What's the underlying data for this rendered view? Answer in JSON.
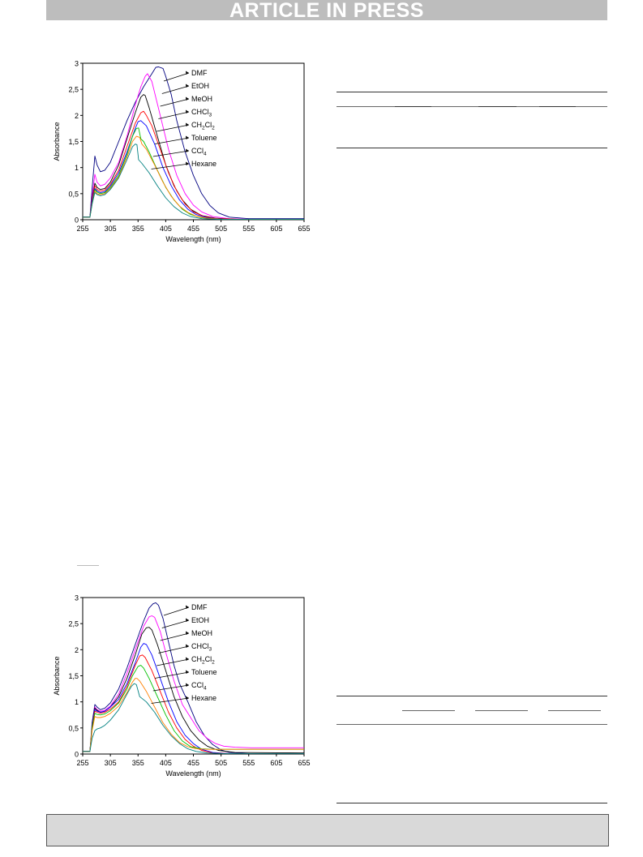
{
  "header": {
    "banner_text": "ARTICLE IN PRESS"
  },
  "chart_data": [
    {
      "type": "line",
      "xlabel": "Wavelength (nm)",
      "ylabel": "Absorbance",
      "xlim": [
        255,
        655
      ],
      "ylim": [
        0,
        3
      ],
      "xticks": [
        255,
        305,
        355,
        405,
        455,
        505,
        555,
        605,
        655
      ],
      "yticks": [
        0,
        0.5,
        1,
        1.5,
        2,
        2.5,
        3
      ],
      "ytick_labels": [
        "0",
        "0,5",
        "1",
        "1,5",
        "2",
        "2,5",
        "3"
      ],
      "grid": false,
      "legend_position": "right (labels with arrows)",
      "series": [
        {
          "name": "DMF",
          "color": "#000080",
          "x": [
            255,
            268,
            272,
            277,
            281,
            287,
            295,
            305,
            320,
            335,
            350,
            365,
            380,
            387,
            392,
            400,
            405,
            415,
            425,
            440,
            455,
            470,
            485,
            500,
            520,
            555,
            655
          ],
          "y": [
            0.05,
            0.05,
            0.6,
            1.22,
            1.05,
            0.92,
            0.95,
            1.1,
            1.5,
            1.9,
            2.25,
            2.55,
            2.8,
            2.92,
            2.93,
            2.9,
            2.75,
            2.4,
            1.9,
            1.3,
            0.85,
            0.5,
            0.27,
            0.13,
            0.05,
            0.02,
            0.02
          ]
        },
        {
          "name": "EtOH",
          "color": "#ff00ff",
          "x": [
            255,
            268,
            272,
            277,
            281,
            287,
            295,
            305,
            320,
            335,
            350,
            360,
            368,
            372,
            380,
            395,
            410,
            425,
            440,
            455,
            470,
            490,
            520,
            555,
            655
          ],
          "y": [
            0.05,
            0.05,
            0.45,
            0.87,
            0.72,
            0.65,
            0.68,
            0.8,
            1.1,
            1.6,
            2.2,
            2.55,
            2.75,
            2.8,
            2.65,
            2.0,
            1.35,
            0.85,
            0.5,
            0.28,
            0.15,
            0.06,
            0.02,
            0.01,
            0.01
          ]
        },
        {
          "name": "MeOH",
          "color": "#000000",
          "x": [
            255,
            268,
            272,
            277,
            281,
            287,
            295,
            305,
            320,
            335,
            350,
            360,
            365,
            368,
            375,
            390,
            405,
            420,
            435,
            450,
            470,
            495,
            530,
            655
          ],
          "y": [
            0.05,
            0.05,
            0.4,
            0.7,
            0.62,
            0.58,
            0.6,
            0.72,
            1.05,
            1.55,
            2.05,
            2.35,
            2.4,
            2.38,
            2.15,
            1.6,
            1.05,
            0.65,
            0.38,
            0.2,
            0.08,
            0.03,
            0.01,
            0.01
          ]
        },
        {
          "name": "CHCl3",
          "color": "#ff0000",
          "x": [
            255,
            268,
            272,
            277,
            281,
            287,
            295,
            305,
            320,
            335,
            350,
            360,
            365,
            370,
            380,
            395,
            410,
            425,
            440,
            455,
            475,
            500,
            540,
            655
          ],
          "y": [
            0.05,
            0.05,
            0.38,
            0.65,
            0.58,
            0.55,
            0.57,
            0.68,
            0.95,
            1.4,
            1.85,
            2.05,
            2.08,
            2.0,
            1.8,
            1.35,
            0.9,
            0.55,
            0.3,
            0.15,
            0.06,
            0.02,
            0.01,
            0.01
          ]
        },
        {
          "name": "CH2Cl2",
          "color": "#0000ff",
          "x": [
            255,
            268,
            272,
            277,
            281,
            287,
            295,
            305,
            320,
            335,
            350,
            355,
            360,
            370,
            385,
            400,
            415,
            430,
            445,
            460,
            480,
            510,
            550,
            655
          ],
          "y": [
            0.05,
            0.05,
            0.35,
            0.6,
            0.55,
            0.52,
            0.54,
            0.65,
            0.9,
            1.3,
            1.75,
            1.88,
            1.9,
            1.8,
            1.45,
            1.0,
            0.65,
            0.38,
            0.2,
            0.1,
            0.04,
            0.01,
            0.01,
            0.01
          ]
        },
        {
          "name": "Toluene",
          "color": "#00c000",
          "x": [
            255,
            268,
            272,
            277,
            281,
            287,
            295,
            305,
            320,
            335,
            345,
            352,
            356,
            360,
            365,
            375,
            390,
            405,
            420,
            435,
            450,
            470,
            500,
            540,
            655
          ],
          "y": [
            0.05,
            0.05,
            0.32,
            0.58,
            0.53,
            0.5,
            0.52,
            0.62,
            0.85,
            1.25,
            1.6,
            1.75,
            1.76,
            1.55,
            1.5,
            1.3,
            0.95,
            0.62,
            0.38,
            0.2,
            0.1,
            0.04,
            0.01,
            0.01,
            0.01
          ]
        },
        {
          "name": "CCl4",
          "color": "#ff8000",
          "x": [
            255,
            268,
            272,
            277,
            281,
            287,
            295,
            305,
            320,
            335,
            345,
            352,
            358,
            362,
            370,
            385,
            400,
            415,
            430,
            445,
            460,
            480,
            510,
            550,
            655
          ],
          "y": [
            0.05,
            0.05,
            0.3,
            0.55,
            0.5,
            0.48,
            0.5,
            0.6,
            0.82,
            1.2,
            1.5,
            1.6,
            1.58,
            1.45,
            1.35,
            1.05,
            0.72,
            0.45,
            0.26,
            0.14,
            0.07,
            0.03,
            0.01,
            0.01,
            0.01
          ]
        },
        {
          "name": "Hexane",
          "color": "#008080",
          "x": [
            255,
            268,
            272,
            277,
            281,
            287,
            295,
            305,
            320,
            335,
            345,
            350,
            353,
            356,
            362,
            375,
            390,
            405,
            420,
            435,
            450,
            470,
            500,
            540,
            655
          ],
          "y": [
            0.05,
            0.05,
            0.3,
            0.52,
            0.48,
            0.46,
            0.48,
            0.58,
            0.8,
            1.15,
            1.4,
            1.45,
            1.44,
            1.15,
            1.08,
            0.9,
            0.65,
            0.42,
            0.25,
            0.13,
            0.06,
            0.02,
            0.01,
            0.01,
            0.01
          ]
        }
      ],
      "labels": [
        {
          "text": "DMF",
          "sub": ""
        },
        {
          "text": "EtOH",
          "sub": ""
        },
        {
          "text": "MeOH",
          "sub": ""
        },
        {
          "text": "CHCl",
          "sub": "3"
        },
        {
          "text": "CH",
          "sub": "2",
          "text2": "Cl",
          "sub2": "2"
        },
        {
          "text": "Toluene",
          "sub": ""
        },
        {
          "text": "CCl",
          "sub": "4"
        },
        {
          "text": "Hexane",
          "sub": ""
        }
      ]
    },
    {
      "type": "line",
      "xlabel": "Wavelength (nm)",
      "ylabel": "Absorbance",
      "xlim": [
        255,
        655
      ],
      "ylim": [
        0,
        3
      ],
      "xticks": [
        255,
        305,
        355,
        405,
        455,
        505,
        555,
        605,
        655
      ],
      "yticks": [
        0,
        0.5,
        1,
        1.5,
        2,
        2.5,
        3
      ],
      "ytick_labels": [
        "0",
        "0,5",
        "1",
        "1,5",
        "2",
        "2,5",
        "3"
      ],
      "grid": false,
      "legend_position": "right (labels with arrows)",
      "series": [
        {
          "name": "DMF",
          "color": "#000080",
          "x": [
            255,
            268,
            272,
            277,
            281,
            287,
            295,
            305,
            320,
            335,
            350,
            365,
            375,
            382,
            387,
            392,
            400,
            410,
            420,
            430,
            445,
            460,
            475,
            490,
            505,
            520,
            555,
            655
          ],
          "y": [
            0.05,
            0.05,
            0.6,
            0.95,
            0.9,
            0.85,
            0.88,
            0.98,
            1.25,
            1.65,
            2.1,
            2.55,
            2.8,
            2.88,
            2.9,
            2.85,
            2.6,
            2.15,
            1.7,
            1.35,
            1.0,
            0.62,
            0.35,
            0.18,
            0.08,
            0.03,
            0.01,
            0.01
          ]
        },
        {
          "name": "EtOH",
          "color": "#ff00ff",
          "x": [
            255,
            268,
            272,
            277,
            281,
            287,
            295,
            305,
            320,
            335,
            350,
            365,
            375,
            380,
            385,
            395,
            405,
            420,
            435,
            450,
            465,
            480,
            495,
            510,
            530,
            560,
            655
          ],
          "y": [
            0.05,
            0.05,
            0.5,
            0.9,
            0.85,
            0.82,
            0.84,
            0.92,
            1.15,
            1.55,
            2.0,
            2.45,
            2.63,
            2.65,
            2.62,
            2.35,
            1.95,
            1.4,
            0.95,
            0.7,
            0.45,
            0.3,
            0.2,
            0.15,
            0.13,
            0.12,
            0.12
          ]
        },
        {
          "name": "MeOH",
          "color": "#000000",
          "x": [
            255,
            268,
            272,
            277,
            281,
            287,
            295,
            305,
            320,
            335,
            350,
            362,
            370,
            375,
            380,
            390,
            405,
            420,
            435,
            450,
            465,
            480,
            500,
            530,
            655
          ],
          "y": [
            0.05,
            0.05,
            0.5,
            0.88,
            0.84,
            0.8,
            0.82,
            0.9,
            1.1,
            1.45,
            1.9,
            2.3,
            2.42,
            2.43,
            2.38,
            2.1,
            1.6,
            1.1,
            0.72,
            0.45,
            0.27,
            0.15,
            0.07,
            0.03,
            0.02
          ]
        },
        {
          "name": "CHCl3",
          "color": "#0000ff",
          "x": [
            255,
            268,
            272,
            277,
            281,
            287,
            295,
            305,
            320,
            335,
            350,
            360,
            365,
            370,
            380,
            395,
            410,
            425,
            440,
            455,
            470,
            490,
            520,
            655
          ],
          "y": [
            0.05,
            0.05,
            0.5,
            0.85,
            0.82,
            0.8,
            0.82,
            0.9,
            1.05,
            1.35,
            1.75,
            2.05,
            2.12,
            2.1,
            1.9,
            1.45,
            1.0,
            0.62,
            0.36,
            0.2,
            0.09,
            0.03,
            0.01,
            0.01
          ]
        },
        {
          "name": "CH2Cl2",
          "color": "#ff0000",
          "x": [
            255,
            268,
            272,
            277,
            281,
            287,
            295,
            305,
            320,
            335,
            350,
            358,
            363,
            368,
            380,
            395,
            410,
            425,
            440,
            455,
            470,
            490,
            520,
            655
          ],
          "y": [
            0.05,
            0.05,
            0.5,
            0.82,
            0.8,
            0.78,
            0.8,
            0.86,
            1.0,
            1.3,
            1.7,
            1.88,
            1.9,
            1.85,
            1.6,
            1.2,
            0.8,
            0.5,
            0.28,
            0.15,
            0.07,
            0.02,
            0.01,
            0.01
          ]
        },
        {
          "name": "Toluene",
          "color": "#00c000",
          "x": [
            255,
            268,
            272,
            277,
            281,
            287,
            295,
            305,
            320,
            335,
            345,
            355,
            360,
            365,
            375,
            390,
            405,
            420,
            435,
            450,
            470,
            490,
            520,
            560,
            655
          ],
          "y": [
            0.05,
            0.05,
            0.5,
            0.78,
            0.76,
            0.75,
            0.77,
            0.83,
            0.98,
            1.25,
            1.5,
            1.68,
            1.7,
            1.65,
            1.45,
            1.1,
            0.75,
            0.45,
            0.25,
            0.14,
            0.1,
            0.09,
            0.09,
            0.09,
            0.09
          ]
        },
        {
          "name": "CCl4",
          "color": "#ff8000",
          "x": [
            255,
            268,
            272,
            277,
            281,
            287,
            295,
            305,
            320,
            335,
            345,
            350,
            353,
            358,
            370,
            385,
            400,
            415,
            430,
            445,
            460,
            480,
            510,
            560,
            655
          ],
          "y": [
            0.05,
            0.05,
            0.45,
            0.72,
            0.7,
            0.7,
            0.72,
            0.78,
            0.92,
            1.18,
            1.38,
            1.45,
            1.45,
            1.4,
            1.2,
            0.9,
            0.6,
            0.38,
            0.22,
            0.14,
            0.1,
            0.09,
            0.09,
            0.09,
            0.09
          ]
        },
        {
          "name": "Hexane",
          "color": "#008080",
          "x": [
            255,
            268,
            272,
            277,
            281,
            287,
            295,
            305,
            320,
            335,
            343,
            348,
            352,
            358,
            370,
            385,
            400,
            415,
            430,
            445,
            460,
            480,
            510,
            555,
            655
          ],
          "y": [
            0.05,
            0.05,
            0.3,
            0.45,
            0.48,
            0.5,
            0.55,
            0.65,
            0.85,
            1.15,
            1.3,
            1.35,
            1.33,
            1.1,
            1.0,
            0.8,
            0.55,
            0.35,
            0.2,
            0.1,
            0.05,
            0.02,
            0.01,
            0.01,
            0.01
          ]
        }
      ],
      "labels": [
        {
          "text": "DMF",
          "sub": ""
        },
        {
          "text": "EtOH",
          "sub": ""
        },
        {
          "text": "MeOH",
          "sub": ""
        },
        {
          "text": "CHCl",
          "sub": "3"
        },
        {
          "text": "CH",
          "sub": "2",
          "text2": "Cl",
          "sub2": "2"
        },
        {
          "text": "Toluene",
          "sub": ""
        },
        {
          "text": "CCl",
          "sub": "4"
        },
        {
          "text": "Hexane",
          "sub": ""
        }
      ]
    }
  ]
}
